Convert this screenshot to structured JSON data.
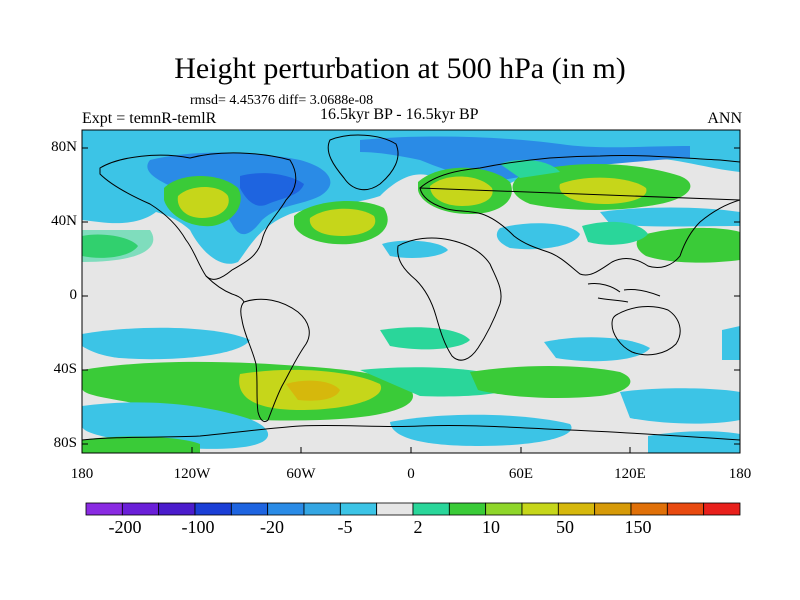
{
  "title": "Height perturbation at 500 hPa (in m)",
  "stats": "rmsd= 4.45376 diff= 3.0688e-08",
  "experiment": "Expt = temnR-temlR",
  "period": "16.5kyr BP - 16.5kyr BP",
  "season": "ANN",
  "map": {
    "background": "#e6e6e6",
    "lat_ticks": [
      "80N",
      "40N",
      "0",
      "40S",
      "80S"
    ],
    "lon_ticks": [
      "180",
      "120W",
      "60W",
      "0",
      "60E",
      "120E",
      "180"
    ]
  },
  "colorbar": {
    "colors": [
      "#8a2be2",
      "#6a1fd8",
      "#4b1ccc",
      "#1b3fd6",
      "#1e64e0",
      "#2a8be6",
      "#34a6e3",
      "#3cc4e6",
      "#e6e6e6",
      "#2ad69a",
      "#3acb38",
      "#8fd62a",
      "#c6d61a",
      "#d6b80c",
      "#d69a08",
      "#e07008",
      "#e84a10",
      "#e8201c"
    ],
    "labels": [
      "-200",
      "-100",
      "-20",
      "-5",
      "2",
      "10",
      "50",
      "150"
    ]
  }
}
